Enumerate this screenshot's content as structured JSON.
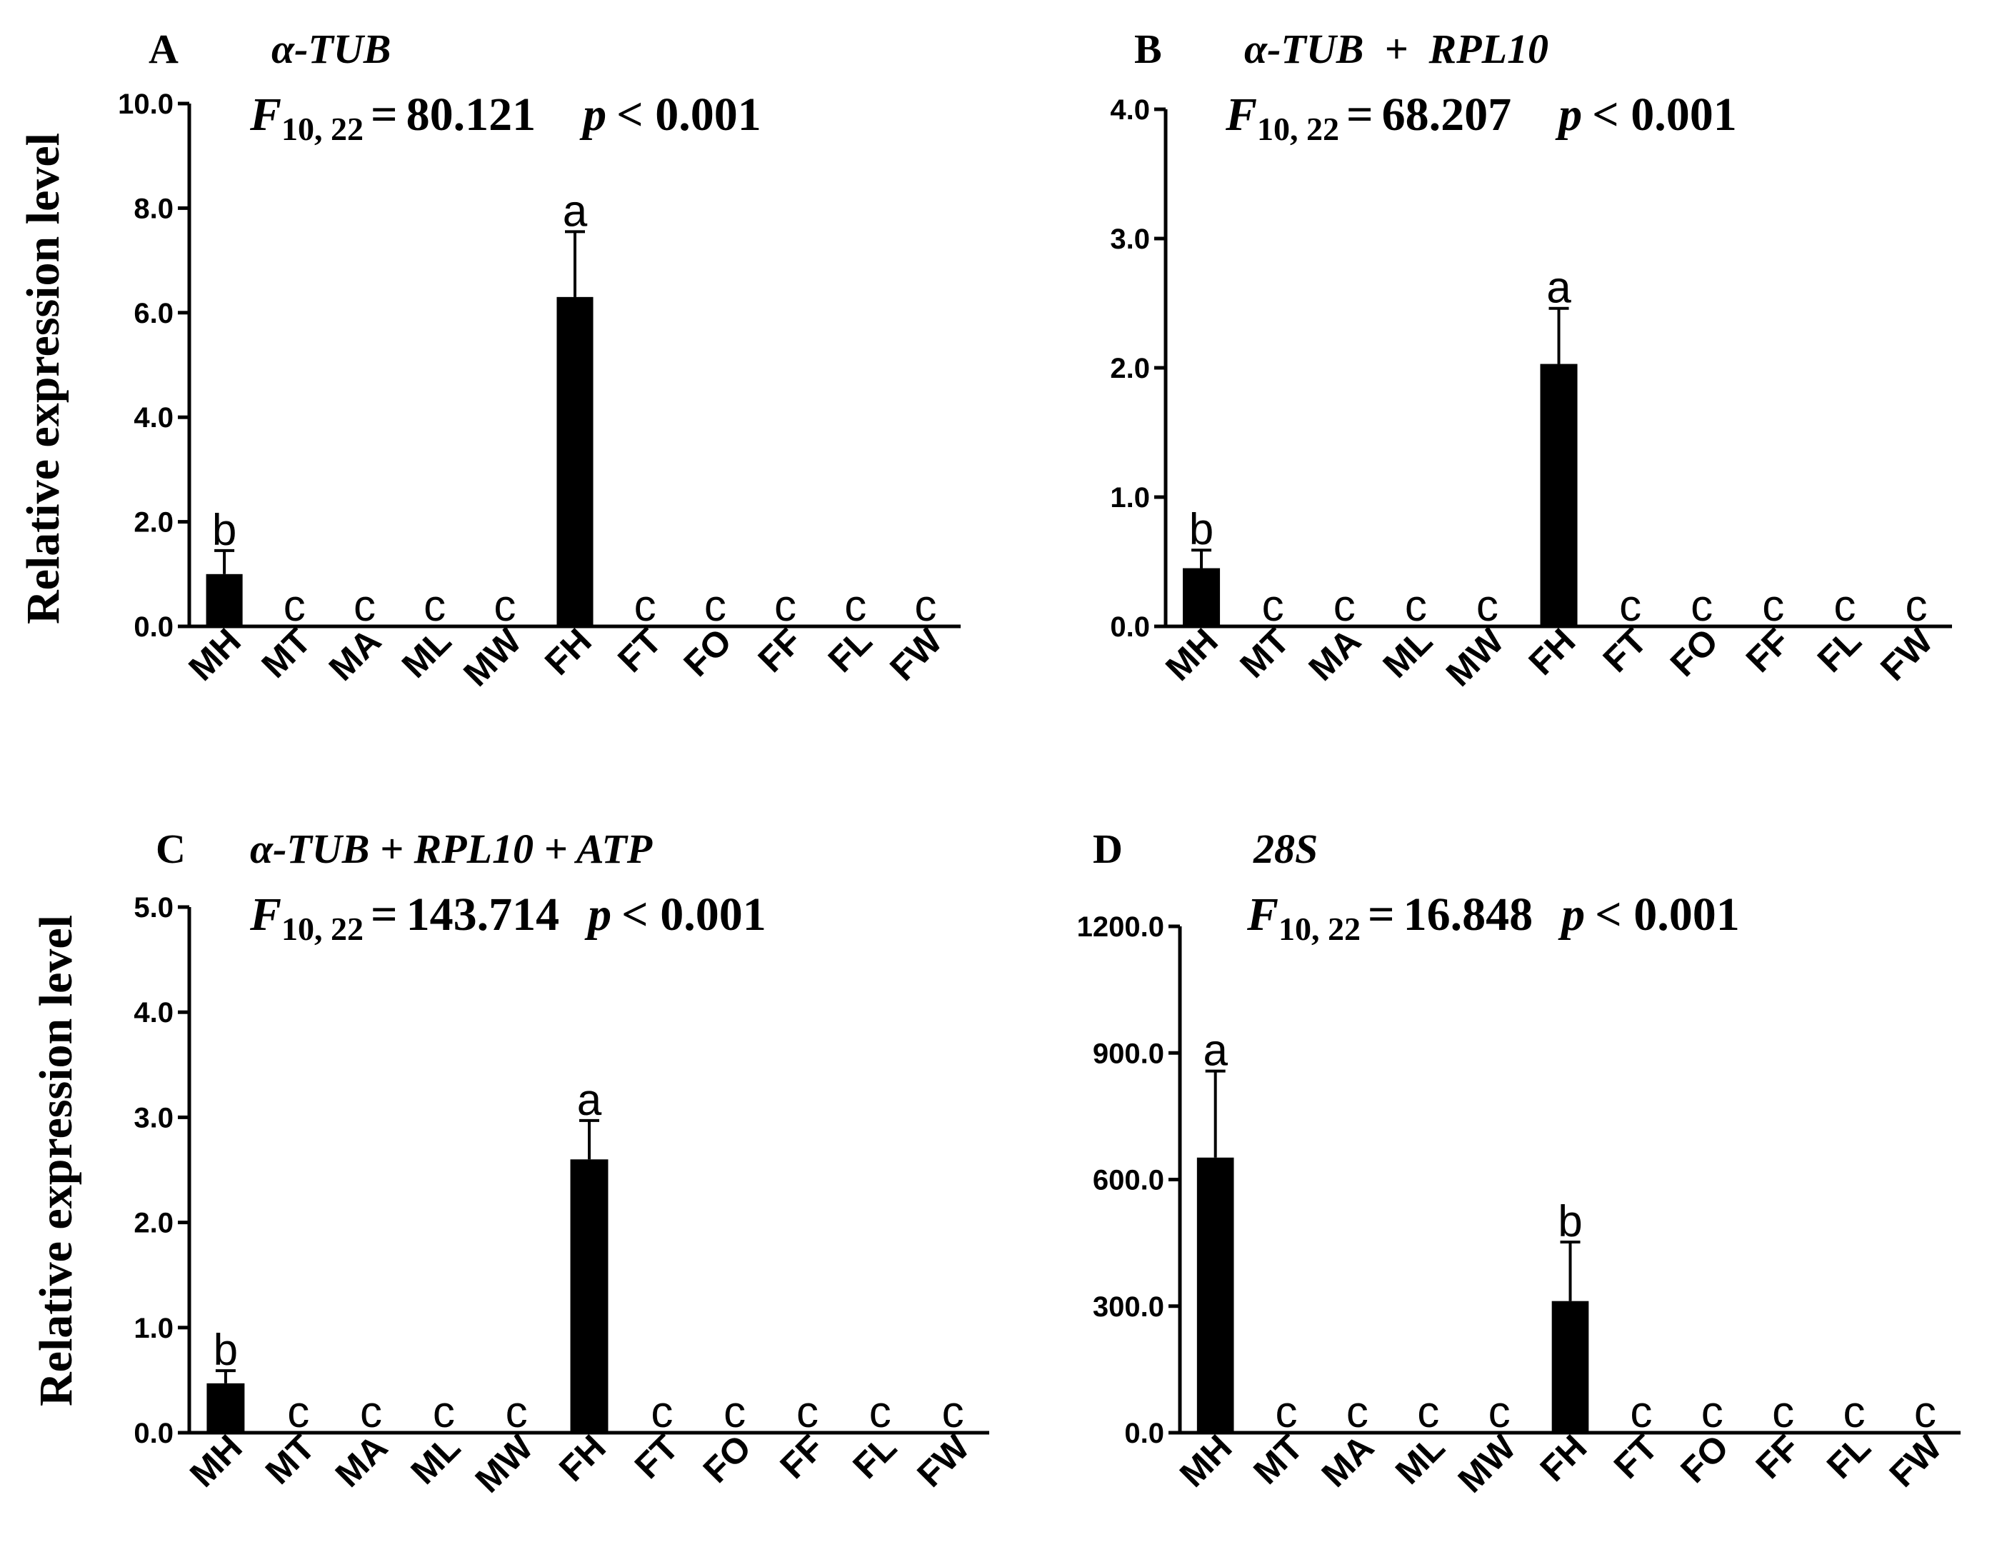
{
  "figure": {
    "y_axis_label": "Relative expression level",
    "categories": [
      "MH",
      "MT",
      "MA",
      "ML",
      "MW",
      "FH",
      "FT",
      "FO",
      "FF",
      "FL",
      "FW"
    ]
  },
  "chart_data": [
    {
      "type": "bar",
      "panel": "A",
      "title": "α-TUB",
      "stat": {
        "F_main": "F",
        "F_sub": "10, 22",
        "F_value": "80.121",
        "p_symbol": "p",
        "p_text": "< 0.001"
      },
      "ylabel": "Relative expression level",
      "categories": [
        "MH",
        "MT",
        "MA",
        "ML",
        "MW",
        "FH",
        "FT",
        "FO",
        "FF",
        "FL",
        "FW"
      ],
      "values": [
        1.0,
        0.0,
        0.0,
        0.0,
        0.0,
        6.3,
        0.0,
        0.0,
        0.0,
        0.0,
        0.0
      ],
      "errors": [
        0.45,
        0,
        0,
        0,
        0,
        1.25,
        0,
        0,
        0,
        0,
        0
      ],
      "letters": [
        "b",
        "c",
        "c",
        "c",
        "c",
        "a",
        "c",
        "c",
        "c",
        "c",
        "c"
      ],
      "ylim": [
        0,
        10
      ],
      "yticks": [
        0,
        2,
        4,
        6,
        8,
        10
      ],
      "ytick_labels": [
        "0.0",
        "2.0",
        "4.0",
        "6.0",
        "8.0",
        "10.0"
      ],
      "color": "#000000"
    },
    {
      "type": "bar",
      "panel": "B",
      "title": "α-TUB  +  RPL10",
      "stat": {
        "F_main": "F",
        "F_sub": "10, 22",
        "F_value": "68.207",
        "p_symbol": "p",
        "p_text": "< 0.001"
      },
      "ylabel": "",
      "categories": [
        "MH",
        "MT",
        "MA",
        "ML",
        "MW",
        "FH",
        "FT",
        "FO",
        "FF",
        "FL",
        "FW"
      ],
      "values": [
        0.45,
        0.0,
        0.0,
        0.0,
        0.0,
        2.03,
        0.0,
        0.0,
        0.0,
        0.0,
        0.0
      ],
      "errors": [
        0.14,
        0,
        0,
        0,
        0,
        0.43,
        0,
        0,
        0,
        0,
        0
      ],
      "letters": [
        "b",
        "c",
        "c",
        "c",
        "c",
        "a",
        "c",
        "c",
        "c",
        "c",
        "c"
      ],
      "ylim": [
        0,
        4
      ],
      "yticks": [
        0,
        1,
        2,
        3,
        4
      ],
      "ytick_labels": [
        "0.0",
        "1.0",
        "2.0",
        "3.0",
        "4.0"
      ],
      "color": "#000000"
    },
    {
      "type": "bar",
      "panel": "C",
      "title": "α-TUB + RPL10 + ATP",
      "stat": {
        "F_main": "F",
        "F_sub": "10, 22",
        "F_value": "143.714",
        "p_symbol": "p",
        "p_text": "< 0.001"
      },
      "ylabel": "Relative expression level",
      "categories": [
        "MH",
        "MT",
        "MA",
        "ML",
        "MW",
        "FH",
        "FT",
        "FO",
        "FF",
        "FL",
        "FW"
      ],
      "values": [
        0.47,
        0.0,
        0.0,
        0.0,
        0.0,
        2.6,
        0.0,
        0.0,
        0.0,
        0.0,
        0.0
      ],
      "errors": [
        0.12,
        0,
        0,
        0,
        0,
        0.37,
        0,
        0,
        0,
        0,
        0
      ],
      "letters": [
        "b",
        "c",
        "c",
        "c",
        "c",
        "a",
        "c",
        "c",
        "c",
        "c",
        "c"
      ],
      "ylim": [
        0,
        5
      ],
      "yticks": [
        0,
        1,
        2,
        3,
        4,
        5
      ],
      "ytick_labels": [
        "0.0",
        "1.0",
        "2.0",
        "3.0",
        "4.0",
        "5.0"
      ],
      "color": "#000000"
    },
    {
      "type": "bar",
      "panel": "D",
      "title": "28S",
      "stat": {
        "F_main": "F",
        "F_sub": "10, 22",
        "F_value": "16.848",
        "p_symbol": "p",
        "p_text": "< 0.001"
      },
      "ylabel": "",
      "categories": [
        "MH",
        "MT",
        "MA",
        "ML",
        "MW",
        "FH",
        "FT",
        "FO",
        "FF",
        "FL",
        "FW"
      ],
      "values": [
        652,
        0.0,
        0.0,
        0.0,
        0.0,
        312,
        0.0,
        0.0,
        0.0,
        0.0,
        0.0
      ],
      "errors": [
        205,
        0,
        0,
        0,
        0,
        140,
        0,
        0,
        0,
        0,
        0
      ],
      "letters": [
        "a",
        "c",
        "c",
        "c",
        "c",
        "b",
        "c",
        "c",
        "c",
        "c",
        "c"
      ],
      "ylim": [
        0,
        1200
      ],
      "yticks": [
        0,
        300,
        600,
        900,
        1200
      ],
      "ytick_labels": [
        "0.0",
        "300.0",
        "600.0",
        "900.0",
        "1200.0"
      ],
      "color": "#000000"
    }
  ]
}
